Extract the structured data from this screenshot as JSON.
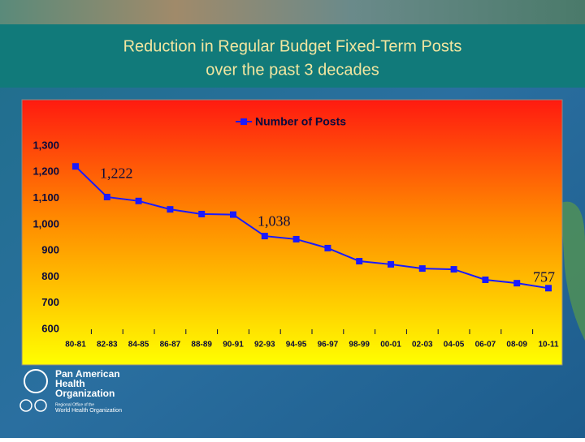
{
  "chart_data": {
    "type": "line",
    "title": [
      "Reduction in Regular Budget Fixed-Term Posts",
      "over the past 3 decades"
    ],
    "categories": [
      "80-81",
      "82-83",
      "84-85",
      "86-87",
      "88-89",
      "90-91",
      "92-93",
      "94-95",
      "96-97",
      "98-99",
      "00-01",
      "02-03",
      "04-05",
      "06-07",
      "08-09",
      "10-11"
    ],
    "series": [
      {
        "name": "Number of Posts",
        "color": "#1a1aff",
        "values": [
          1222,
          1105,
          1090,
          1058,
          1040,
          1038,
          956,
          944,
          910,
          860,
          848,
          832,
          829,
          789,
          776,
          757
        ],
        "value_labels": [
          "1,222",
          null,
          null,
          null,
          null,
          "1,038",
          null,
          null,
          null,
          null,
          null,
          null,
          null,
          null,
          null,
          "757"
        ]
      }
    ],
    "ylim": [
      600,
      1300
    ],
    "yticks": [
      600,
      700,
      800,
      900,
      {
        "value": 1000,
        "label": "1,000"
      },
      {
        "value": 1100,
        "label": "1,100"
      },
      {
        "value": 1200,
        "label": "1,200"
      },
      {
        "value": 1300,
        "label": "1,300"
      }
    ],
    "legend": "top"
  },
  "logo": {
    "name": [
      "Pan American",
      "Health",
      "Organization"
    ],
    "subtitle": [
      "Regional Office of the",
      "World Health Organization"
    ]
  }
}
